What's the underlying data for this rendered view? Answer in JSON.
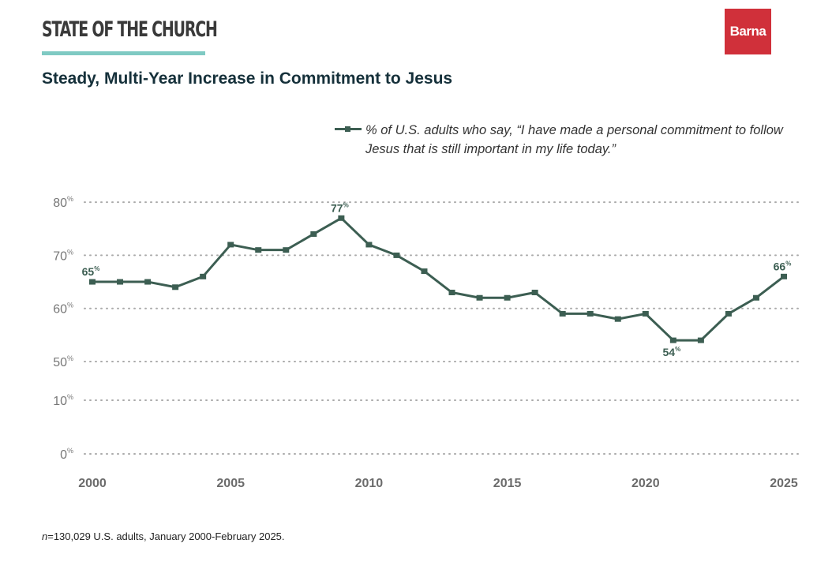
{
  "header": {
    "kicker": "STATE OF THE CHURCH",
    "logo_text": "Barna",
    "title": "Steady, Multi-Year Increase in Commitment to Jesus"
  },
  "footnote_n": "n",
  "footnote": "=130,029 U.S. adults, January 2000-February 2025.",
  "colors": {
    "line": "#3c5e52",
    "accent": "#7fcac3",
    "brand": "#d0303a"
  },
  "chart_data": {
    "type": "line",
    "title": "Steady, Multi-Year Increase in Commitment to Jesus",
    "xlabel": "",
    "ylabel": "",
    "x_ticks": [
      "2000",
      "2005",
      "2010",
      "2015",
      "2020",
      "2025"
    ],
    "y_ticks": [
      "80",
      "70",
      "60",
      "50",
      "10",
      "0"
    ],
    "y_tick_suffix": "%",
    "axis_break": "between 10% and 50%",
    "grid": true,
    "legend_placement": "top-right",
    "series": [
      {
        "name": "% of U.S. adults who say, “I have made a personal commitment to follow Jesus that is still important in my life today.”",
        "x": [
          2000,
          2001,
          2002,
          2003,
          2004,
          2005,
          2006,
          2007,
          2008,
          2009,
          2010,
          2011,
          2012,
          2013,
          2014,
          2015,
          2016,
          2017,
          2018,
          2019,
          2020,
          2021,
          2022,
          2023,
          2024,
          2025
        ],
        "values": [
          65,
          65,
          65,
          64,
          66,
          72,
          71,
          71,
          74,
          77,
          72,
          70,
          67,
          63,
          62,
          62,
          63,
          59,
          59,
          58,
          59,
          54,
          54,
          59,
          62,
          66
        ]
      }
    ],
    "annotations": [
      {
        "x": 2000,
        "label": "65",
        "pos": "above"
      },
      {
        "x": 2009,
        "label": "77",
        "pos": "above"
      },
      {
        "x": 2021,
        "label": "54",
        "pos": "below"
      },
      {
        "x": 2025,
        "label": "66",
        "pos": "above"
      }
    ]
  }
}
